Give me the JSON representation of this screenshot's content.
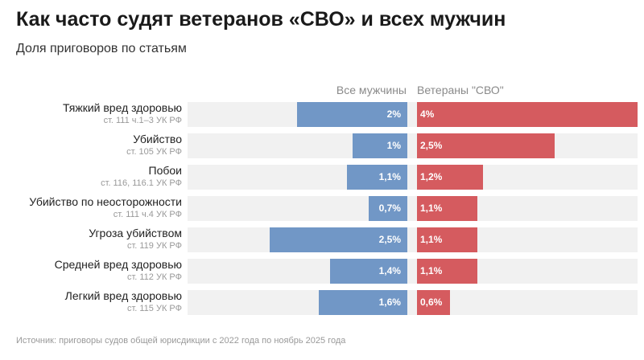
{
  "title": "Как часто судят ветеранов «СВО» и всех мужчин",
  "subtitle": "Доля приговоров по статьям",
  "source": "Источник: приговоры судов общей юрисдикции с 2022 года по ноябрь 2025 года",
  "chart_data": {
    "type": "bar",
    "orientation": "horizontal-diverging",
    "categories": [
      {
        "label": "Тяжкий вред здоровью",
        "sub": "ст. 111 ч.1–3 УК РФ"
      },
      {
        "label": "Убийство",
        "sub": "ст. 105 УК РФ"
      },
      {
        "label": "Побои",
        "sub": "ст. 116, 116.1 УК РФ"
      },
      {
        "label": "Убийство по неосторожности",
        "sub": "ст. 111 ч.4 УК РФ"
      },
      {
        "label": "Угроза убийством",
        "sub": "ст. 119 УК РФ"
      },
      {
        "label": "Средней вред здоровью",
        "sub": "ст. 112 УК РФ"
      },
      {
        "label": "Легкий вред здоровью",
        "sub": "ст. 115 УК РФ"
      }
    ],
    "series": [
      {
        "name": "Все мужчины",
        "color": "#7197c6",
        "values": [
          2,
          1,
          1.1,
          0.7,
          2.5,
          1.4,
          1.6
        ],
        "labels": [
          "2%",
          "1%",
          "1,1%",
          "0,7%",
          "2,5%",
          "1,4%",
          "1,6%"
        ]
      },
      {
        "name": "Ветераны \"СВО\"",
        "color": "#d55b5f",
        "values": [
          4,
          2.5,
          1.2,
          1.1,
          1.1,
          1.1,
          0.6
        ],
        "labels": [
          "4%",
          "2,5%",
          "1,2%",
          "1,1%",
          "1,1%",
          "1,1%",
          "0,6%"
        ]
      }
    ],
    "unit": "%"
  }
}
